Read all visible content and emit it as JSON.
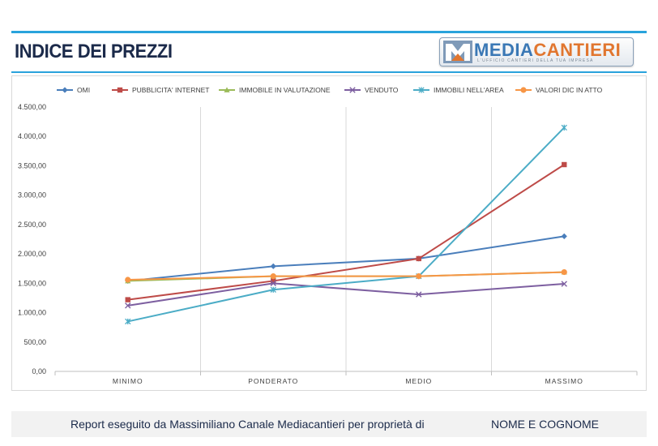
{
  "header": {
    "title": "INDICE DEI PREZZI",
    "logo_text_a": "MEDIA",
    "logo_text_b": "CANTIERI",
    "logo_tagline": "L'UFFICIO CANTIERI DELLA TUA IMPRESA"
  },
  "footer": {
    "report_text": "Report eseguito da Massimiliano Canale Mediacantieri per proprietà di",
    "name": "NOME E COGNOME"
  },
  "chart_data": {
    "type": "line",
    "title": "",
    "xlabel": "",
    "ylabel": "",
    "categories": [
      "MINIMO",
      "PONDERATO",
      "MEDIO",
      "MASSIMO"
    ],
    "ylim": [
      0,
      4500
    ],
    "yticks": [
      "0,00",
      "500,00",
      "1.000,00",
      "1.500,00",
      "2.000,00",
      "2.500,00",
      "3.000,00",
      "3.500,00",
      "4.000,00",
      "4.500,00"
    ],
    "grid": "vertical",
    "legend": "top",
    "series": [
      {
        "name": "OMI",
        "color": "#4a7ebb",
        "marker": "diamond",
        "values": [
          1540,
          1790,
          1920,
          2300
        ]
      },
      {
        "name": "PUBBLICITA'  INTERNET",
        "color": "#be4b48",
        "marker": "square",
        "values": [
          1220,
          1540,
          1920,
          3520
        ]
      },
      {
        "name": "IMMOBILE IN VALUTAZIONE",
        "color": "#9bbb59",
        "marker": "triangle",
        "values": [
          1540,
          1620,
          1620,
          1690
        ]
      },
      {
        "name": "VENDUTO",
        "color": "#7d5fa0",
        "marker": "x",
        "values": [
          1120,
          1500,
          1310,
          1490
        ]
      },
      {
        "name": "IMMOBILI NELL'AREA",
        "color": "#4bacc6",
        "marker": "star",
        "values": [
          850,
          1390,
          1620,
          4150
        ]
      },
      {
        "name": "VALORI DIC IN ATTO",
        "color": "#f79646",
        "marker": "circle",
        "values": [
          1560,
          1620,
          1620,
          1690
        ]
      }
    ]
  }
}
